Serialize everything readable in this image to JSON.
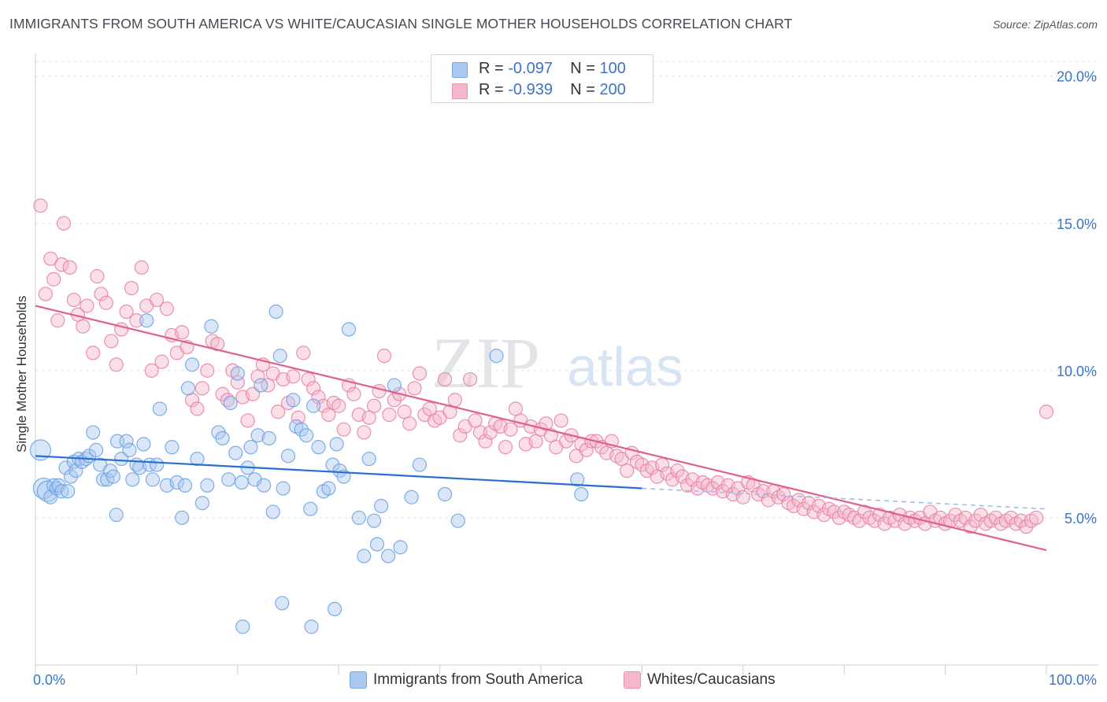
{
  "title": "IMMIGRANTS FROM SOUTH AMERICA VS WHITE/CAUCASIAN SINGLE MOTHER HOUSEHOLDS CORRELATION CHART",
  "source": "Source: ZipAtlas.com",
  "watermark": {
    "zip": "ZIP",
    "atlas": "atlas"
  },
  "legend": {
    "r_label": "R =",
    "n_label": "N =",
    "series": [
      {
        "r": "-0.097",
        "n": "100",
        "swatch": "#a9c8f0"
      },
      {
        "r": "-0.939",
        "n": "200",
        "swatch": "#f5b8cb"
      }
    ]
  },
  "bottom_legend": [
    "Immigrants from South America",
    "Whites/Caucasians"
  ],
  "chart_data": {
    "type": "scatter",
    "title": "IMMIGRANTS FROM SOUTH AMERICA VS WHITE/CAUCASIAN SINGLE MOTHER HOUSEHOLDS CORRELATION CHART",
    "ylabel": "Single Mother Households",
    "xlim": [
      0,
      100
    ],
    "ylim": [
      0,
      20.5
    ],
    "x_tick_labels": [
      "0.0%",
      "100.0%"
    ],
    "y_ticks": [
      5,
      10,
      15,
      20
    ],
    "y_tick_labels": [
      "5.0%",
      "10.0%",
      "15.0%",
      "20.0%"
    ],
    "grid": true,
    "legend_position": "top-center",
    "series": [
      {
        "name": "Immigrants from South America",
        "color": "#6aa0e0",
        "fill": "#a9c8f0",
        "r": -0.097,
        "n": 100,
        "trend": {
          "x0": 0,
          "y0": 7.1,
          "x1": 60,
          "y1": 6.0,
          "x_dash_end": 100,
          "y_dash_end": 5.3,
          "color": "#2a6fd0"
        },
        "points": [
          [
            0.5,
            7.3
          ],
          [
            0.8,
            6.0
          ],
          [
            1.2,
            5.9
          ],
          [
            1.5,
            5.7
          ],
          [
            1.8,
            6.1
          ],
          [
            2.1,
            6.0
          ],
          [
            2.3,
            6.1
          ],
          [
            2.6,
            5.9
          ],
          [
            3.2,
            5.9
          ],
          [
            3.0,
            6.7
          ],
          [
            3.5,
            6.4
          ],
          [
            3.8,
            6.9
          ],
          [
            4.0,
            6.6
          ],
          [
            4.3,
            7.0
          ],
          [
            4.6,
            6.9
          ],
          [
            5.0,
            7.0
          ],
          [
            5.3,
            7.1
          ],
          [
            5.7,
            7.9
          ],
          [
            6.0,
            7.3
          ],
          [
            6.4,
            6.8
          ],
          [
            6.7,
            6.3
          ],
          [
            7.1,
            6.3
          ],
          [
            7.4,
            6.6
          ],
          [
            7.7,
            6.4
          ],
          [
            8.1,
            7.6
          ],
          [
            8.5,
            7.0
          ],
          [
            8.0,
            5.1
          ],
          [
            9.0,
            7.6
          ],
          [
            9.3,
            7.3
          ],
          [
            9.6,
            6.3
          ],
          [
            10.0,
            6.8
          ],
          [
            10.3,
            6.7
          ],
          [
            10.7,
            7.5
          ],
          [
            11.0,
            11.7
          ],
          [
            11.3,
            6.8
          ],
          [
            11.6,
            6.3
          ],
          [
            12.0,
            6.8
          ],
          [
            12.3,
            8.7
          ],
          [
            13.0,
            6.1
          ],
          [
            13.5,
            7.4
          ],
          [
            14.0,
            6.2
          ],
          [
            14.5,
            5.0
          ],
          [
            14.8,
            6.1
          ],
          [
            15.1,
            9.4
          ],
          [
            15.5,
            10.2
          ],
          [
            16.0,
            7.0
          ],
          [
            16.5,
            5.5
          ],
          [
            17.0,
            6.1
          ],
          [
            17.4,
            11.5
          ],
          [
            18.1,
            7.9
          ],
          [
            18.5,
            7.7
          ],
          [
            19.1,
            6.3
          ],
          [
            19.3,
            8.9
          ],
          [
            19.8,
            7.2
          ],
          [
            20.0,
            9.9
          ],
          [
            20.4,
            6.2
          ],
          [
            21.0,
            6.7
          ],
          [
            21.3,
            7.4
          ],
          [
            21.7,
            6.3
          ],
          [
            22.0,
            7.8
          ],
          [
            22.3,
            9.5
          ],
          [
            22.6,
            6.1
          ],
          [
            23.1,
            7.7
          ],
          [
            23.5,
            5.2
          ],
          [
            23.8,
            12.0
          ],
          [
            24.2,
            10.5
          ],
          [
            24.5,
            6.0
          ],
          [
            25.0,
            7.1
          ],
          [
            25.5,
            9.0
          ],
          [
            25.8,
            8.1
          ],
          [
            26.3,
            8.0
          ],
          [
            26.8,
            7.8
          ],
          [
            27.2,
            5.3
          ],
          [
            27.5,
            8.8
          ],
          [
            28.0,
            7.4
          ],
          [
            28.5,
            5.9
          ],
          [
            29.0,
            6.0
          ],
          [
            29.4,
            6.8
          ],
          [
            29.8,
            7.5
          ],
          [
            30.1,
            6.6
          ],
          [
            30.5,
            6.4
          ],
          [
            31.0,
            11.4
          ],
          [
            32.0,
            5.0
          ],
          [
            32.5,
            3.7
          ],
          [
            33.0,
            7.0
          ],
          [
            33.5,
            4.9
          ],
          [
            33.8,
            4.1
          ],
          [
            34.2,
            5.4
          ],
          [
            34.9,
            3.7
          ],
          [
            35.5,
            9.5
          ],
          [
            36.1,
            4.0
          ],
          [
            37.2,
            5.7
          ],
          [
            38.0,
            6.8
          ],
          [
            40.5,
            5.8
          ],
          [
            41.8,
            4.9
          ],
          [
            45.6,
            10.5
          ],
          [
            53.6,
            6.3
          ],
          [
            54.0,
            5.8
          ],
          [
            20.5,
            1.3
          ],
          [
            24.4,
            2.1
          ],
          [
            27.3,
            1.3
          ],
          [
            29.6,
            1.9
          ]
        ]
      },
      {
        "name": "Whites/Caucasians",
        "color": "#e87fa0",
        "fill": "#f5b8cb",
        "r": -0.939,
        "n": 200,
        "trend": {
          "x0": 0,
          "y0": 12.2,
          "x1": 100,
          "y1": 3.9,
          "color": "#e0608a"
        },
        "points": [
          [
            0.5,
            15.6
          ],
          [
            1.0,
            12.6
          ],
          [
            1.5,
            13.8
          ],
          [
            1.8,
            13.1
          ],
          [
            2.2,
            11.7
          ],
          [
            2.6,
            13.6
          ],
          [
            2.8,
            15.0
          ],
          [
            3.4,
            13.5
          ],
          [
            3.8,
            12.4
          ],
          [
            4.2,
            11.9
          ],
          [
            4.7,
            11.5
          ],
          [
            5.1,
            12.2
          ],
          [
            5.7,
            10.6
          ],
          [
            6.1,
            13.2
          ],
          [
            6.5,
            12.6
          ],
          [
            7.0,
            12.3
          ],
          [
            7.5,
            11.0
          ],
          [
            8.0,
            10.2
          ],
          [
            8.5,
            11.4
          ],
          [
            9.0,
            12.0
          ],
          [
            9.5,
            12.8
          ],
          [
            10.0,
            11.7
          ],
          [
            10.5,
            13.5
          ],
          [
            11.0,
            12.2
          ],
          [
            11.5,
            10.0
          ],
          [
            12.0,
            12.4
          ],
          [
            12.5,
            10.3
          ],
          [
            13.0,
            12.1
          ],
          [
            13.5,
            11.2
          ],
          [
            14.0,
            10.6
          ],
          [
            14.5,
            11.3
          ],
          [
            15.0,
            10.8
          ],
          [
            15.5,
            9.0
          ],
          [
            16.0,
            8.7
          ],
          [
            16.5,
            9.4
          ],
          [
            17.0,
            10.0
          ],
          [
            17.5,
            11.0
          ],
          [
            18.0,
            10.9
          ],
          [
            18.5,
            9.2
          ],
          [
            19.0,
            9.0
          ],
          [
            19.5,
            10.0
          ],
          [
            20.0,
            9.6
          ],
          [
            20.5,
            9.1
          ],
          [
            21.0,
            8.3
          ],
          [
            21.5,
            9.2
          ],
          [
            22.0,
            9.8
          ],
          [
            22.5,
            10.2
          ],
          [
            23.0,
            9.5
          ],
          [
            23.5,
            9.9
          ],
          [
            24.0,
            8.6
          ],
          [
            24.5,
            9.7
          ],
          [
            25.0,
            8.9
          ],
          [
            25.5,
            9.8
          ],
          [
            26.0,
            8.4
          ],
          [
            26.5,
            10.6
          ],
          [
            27.0,
            9.7
          ],
          [
            27.5,
            9.4
          ],
          [
            28.0,
            9.1
          ],
          [
            28.5,
            8.8
          ],
          [
            29.0,
            8.5
          ],
          [
            29.5,
            8.9
          ],
          [
            30.0,
            8.8
          ],
          [
            30.5,
            8.0
          ],
          [
            31.0,
            9.5
          ],
          [
            31.5,
            9.2
          ],
          [
            32.0,
            8.5
          ],
          [
            32.5,
            7.9
          ],
          [
            33.0,
            8.4
          ],
          [
            33.5,
            8.8
          ],
          [
            34.0,
            9.3
          ],
          [
            34.5,
            10.5
          ],
          [
            35.0,
            8.5
          ],
          [
            35.5,
            9.0
          ],
          [
            36.0,
            9.2
          ],
          [
            36.5,
            8.6
          ],
          [
            37.0,
            8.2
          ],
          [
            37.5,
            9.4
          ],
          [
            38.0,
            9.9
          ],
          [
            38.5,
            8.5
          ],
          [
            39.0,
            8.7
          ],
          [
            39.5,
            8.3
          ],
          [
            40.0,
            8.4
          ],
          [
            40.5,
            9.7
          ],
          [
            41.0,
            8.6
          ],
          [
            41.5,
            9.0
          ],
          [
            42.0,
            7.8
          ],
          [
            42.5,
            8.1
          ],
          [
            43.0,
            9.7
          ],
          [
            43.5,
            8.3
          ],
          [
            44.0,
            7.9
          ],
          [
            44.5,
            7.6
          ],
          [
            45.0,
            7.9
          ],
          [
            45.5,
            8.2
          ],
          [
            46.0,
            8.1
          ],
          [
            46.5,
            7.4
          ],
          [
            47.0,
            8.0
          ],
          [
            47.5,
            8.7
          ],
          [
            48.0,
            8.3
          ],
          [
            48.5,
            7.5
          ],
          [
            49.0,
            8.1
          ],
          [
            49.5,
            7.6
          ],
          [
            50.0,
            8.0
          ],
          [
            50.5,
            8.2
          ],
          [
            51.0,
            7.8
          ],
          [
            51.5,
            7.4
          ],
          [
            52.0,
            8.3
          ],
          [
            52.5,
            7.6
          ],
          [
            53.0,
            7.8
          ],
          [
            53.5,
            7.1
          ],
          [
            54.0,
            7.5
          ],
          [
            54.5,
            7.3
          ],
          [
            55.0,
            7.6
          ],
          [
            55.5,
            7.6
          ],
          [
            56.0,
            7.4
          ],
          [
            56.5,
            7.2
          ],
          [
            57.0,
            7.6
          ],
          [
            57.5,
            7.1
          ],
          [
            58.0,
            7.0
          ],
          [
            58.5,
            6.6
          ],
          [
            59.0,
            7.2
          ],
          [
            59.5,
            6.9
          ],
          [
            60.0,
            6.8
          ],
          [
            60.5,
            6.6
          ],
          [
            61.0,
            6.7
          ],
          [
            61.5,
            6.4
          ],
          [
            62.0,
            6.8
          ],
          [
            62.5,
            6.5
          ],
          [
            63.0,
            6.3
          ],
          [
            63.5,
            6.6
          ],
          [
            64.0,
            6.4
          ],
          [
            64.5,
            6.1
          ],
          [
            65.0,
            6.3
          ],
          [
            65.5,
            6.0
          ],
          [
            66.0,
            6.2
          ],
          [
            66.5,
            6.1
          ],
          [
            67.0,
            6.0
          ],
          [
            67.5,
            6.2
          ],
          [
            68.0,
            5.9
          ],
          [
            68.5,
            6.1
          ],
          [
            69.0,
            5.8
          ],
          [
            69.5,
            6.0
          ],
          [
            70.0,
            5.7
          ],
          [
            70.5,
            6.2
          ],
          [
            71.0,
            6.1
          ],
          [
            71.5,
            5.8
          ],
          [
            72.0,
            5.9
          ],
          [
            72.5,
            5.6
          ],
          [
            73.0,
            5.9
          ],
          [
            73.5,
            5.7
          ],
          [
            74.0,
            5.8
          ],
          [
            74.5,
            5.5
          ],
          [
            75.0,
            5.4
          ],
          [
            75.5,
            5.6
          ],
          [
            76.0,
            5.3
          ],
          [
            76.5,
            5.5
          ],
          [
            77.0,
            5.2
          ],
          [
            77.5,
            5.4
          ],
          [
            78.0,
            5.1
          ],
          [
            78.5,
            5.3
          ],
          [
            79.0,
            5.2
          ],
          [
            79.5,
            5.0
          ],
          [
            80.0,
            5.2
          ],
          [
            80.5,
            5.1
          ],
          [
            81.0,
            5.0
          ],
          [
            81.5,
            4.9
          ],
          [
            82.0,
            5.2
          ],
          [
            82.5,
            5.0
          ],
          [
            83.0,
            4.9
          ],
          [
            83.5,
            5.1
          ],
          [
            84.0,
            4.8
          ],
          [
            84.5,
            5.0
          ],
          [
            85.0,
            4.9
          ],
          [
            85.5,
            5.1
          ],
          [
            86.0,
            4.8
          ],
          [
            86.5,
            5.0
          ],
          [
            87.0,
            4.9
          ],
          [
            87.5,
            5.0
          ],
          [
            88.0,
            4.8
          ],
          [
            88.5,
            5.2
          ],
          [
            89.0,
            4.9
          ],
          [
            89.5,
            5.0
          ],
          [
            90.0,
            4.8
          ],
          [
            90.5,
            4.9
          ],
          [
            91.0,
            5.1
          ],
          [
            91.5,
            4.9
          ],
          [
            92.0,
            5.0
          ],
          [
            92.5,
            4.7
          ],
          [
            93.0,
            4.9
          ],
          [
            93.5,
            5.1
          ],
          [
            94.0,
            4.8
          ],
          [
            94.5,
            4.9
          ],
          [
            95.0,
            5.0
          ],
          [
            95.5,
            4.8
          ],
          [
            96.0,
            4.9
          ],
          [
            96.5,
            5.0
          ],
          [
            97.0,
            4.8
          ],
          [
            97.5,
            4.9
          ],
          [
            98.0,
            4.7
          ],
          [
            98.5,
            4.9
          ],
          [
            99.0,
            5.0
          ],
          [
            100.0,
            8.6
          ]
        ]
      }
    ]
  }
}
